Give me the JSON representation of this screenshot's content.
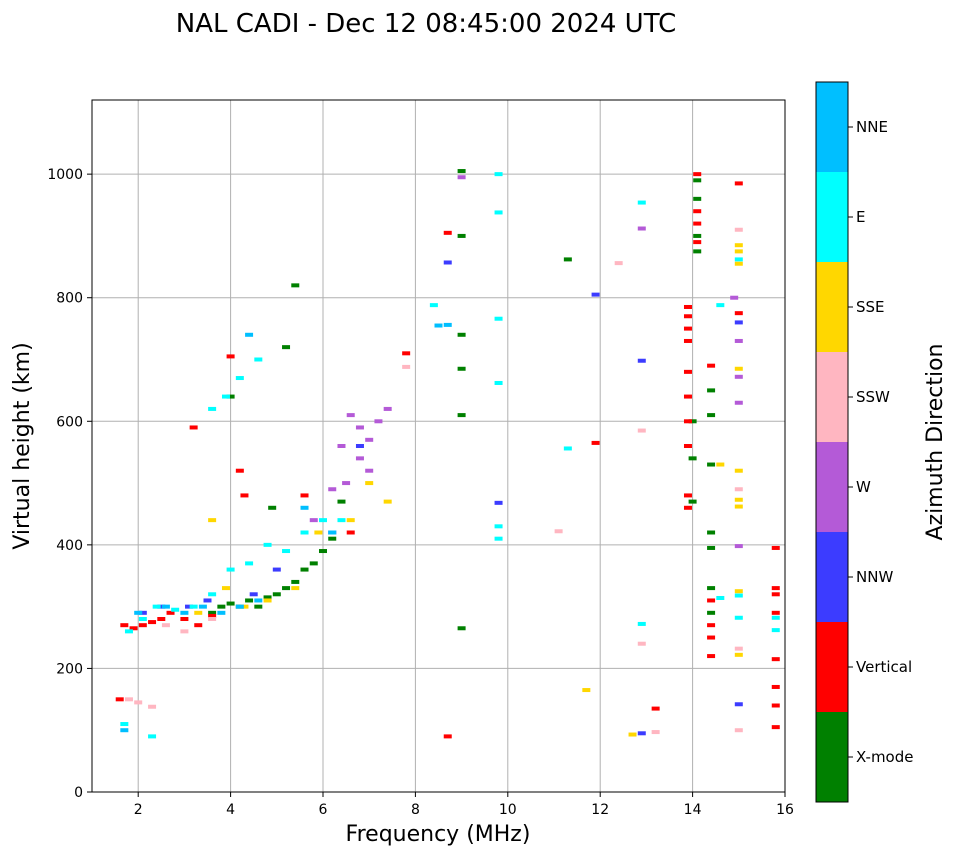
{
  "chart_data": {
    "type": "scatter",
    "title": "NAL CADI - Dec 12 08:45:00 2024 UTC",
    "xlabel": "Frequency (MHz)",
    "ylabel": "Virtual height (km)",
    "xlim": [
      1,
      16
    ],
    "ylim": [
      0,
      1120
    ],
    "xticks": [
      2,
      4,
      6,
      8,
      10,
      12,
      14,
      16
    ],
    "yticks": [
      0,
      200,
      400,
      600,
      800,
      1000
    ],
    "grid": true,
    "colorbar": {
      "label": "Azimuth Direction",
      "categories": [
        {
          "name": "X-mode",
          "color": "#008000"
        },
        {
          "name": "Vertical",
          "color": "#ff0000"
        },
        {
          "name": "NNW",
          "color": "#3c3cff"
        },
        {
          "name": "W",
          "color": "#b45ad7"
        },
        {
          "name": "SSW",
          "color": "#ffb6c1"
        },
        {
          "name": "SSE",
          "color": "#ffd700"
        },
        {
          "name": "E",
          "color": "#00ffff"
        },
        {
          "name": "NNE",
          "color": "#00bfff"
        }
      ]
    },
    "series": [
      {
        "name": "X-mode",
        "points": [
          [
            3.6,
            290
          ],
          [
            3.8,
            300
          ],
          [
            4.0,
            305
          ],
          [
            4.2,
            300
          ],
          [
            4.4,
            310
          ],
          [
            4.6,
            300
          ],
          [
            4.8,
            315
          ],
          [
            5.0,
            320
          ],
          [
            5.2,
            330
          ],
          [
            5.4,
            340
          ],
          [
            5.6,
            360
          ],
          [
            5.8,
            370
          ],
          [
            6.0,
            390
          ],
          [
            6.2,
            410
          ],
          [
            4.9,
            460
          ],
          [
            5.2,
            720
          ],
          [
            5.4,
            820
          ],
          [
            9.0,
            1005
          ],
          [
            9.0,
            900
          ],
          [
            9.0,
            740
          ],
          [
            9.0,
            685
          ],
          [
            9.0,
            610
          ],
          [
            9.0,
            265
          ],
          [
            11.3,
            862
          ],
          [
            14.1,
            990
          ],
          [
            14.1,
            960
          ],
          [
            14.1,
            900
          ],
          [
            14.1,
            875
          ],
          [
            14.0,
            600
          ],
          [
            14.0,
            540
          ],
          [
            14.0,
            470
          ],
          [
            14.4,
            650
          ],
          [
            14.4,
            610
          ],
          [
            14.4,
            530
          ],
          [
            14.4,
            420
          ],
          [
            14.4,
            395
          ],
          [
            14.4,
            330
          ],
          [
            14.4,
            290
          ],
          [
            4.0,
            640
          ],
          [
            6.4,
            470
          ]
        ]
      },
      {
        "name": "Vertical",
        "points": [
          [
            1.7,
            270
          ],
          [
            1.9,
            265
          ],
          [
            2.1,
            270
          ],
          [
            2.3,
            275
          ],
          [
            2.5,
            280
          ],
          [
            2.7,
            290
          ],
          [
            3.0,
            280
          ],
          [
            3.3,
            270
          ],
          [
            3.6,
            285
          ],
          [
            1.6,
            150
          ],
          [
            4.0,
            705
          ],
          [
            4.2,
            520
          ],
          [
            4.3,
            480
          ],
          [
            3.2,
            590
          ],
          [
            5.6,
            480
          ],
          [
            6.6,
            420
          ],
          [
            7.8,
            710
          ],
          [
            8.7,
            905
          ],
          [
            8.7,
            90
          ],
          [
            11.9,
            565
          ],
          [
            13.2,
            135
          ],
          [
            14.1,
            1000
          ],
          [
            14.1,
            940
          ],
          [
            14.1,
            920
          ],
          [
            14.1,
            890
          ],
          [
            13.9,
            785
          ],
          [
            13.9,
            770
          ],
          [
            13.9,
            750
          ],
          [
            13.9,
            730
          ],
          [
            13.9,
            680
          ],
          [
            13.9,
            640
          ],
          [
            13.9,
            600
          ],
          [
            13.9,
            560
          ],
          [
            13.9,
            480
          ],
          [
            13.9,
            460
          ],
          [
            14.4,
            690
          ],
          [
            14.4,
            310
          ],
          [
            14.4,
            270
          ],
          [
            14.4,
            250
          ],
          [
            14.4,
            220
          ],
          [
            15.0,
            985
          ],
          [
            15.0,
            775
          ],
          [
            15.8,
            395
          ],
          [
            15.8,
            330
          ],
          [
            15.8,
            320
          ],
          [
            15.8,
            290
          ],
          [
            15.8,
            215
          ],
          [
            15.8,
            170
          ],
          [
            15.8,
            140
          ],
          [
            15.8,
            105
          ]
        ]
      },
      {
        "name": "NNW",
        "points": [
          [
            2.1,
            290
          ],
          [
            2.5,
            300
          ],
          [
            3.1,
            300
          ],
          [
            3.5,
            310
          ],
          [
            4.5,
            320
          ],
          [
            5.0,
            360
          ],
          [
            6.2,
            420
          ],
          [
            8.7,
            857
          ],
          [
            9.8,
            468
          ],
          [
            11.9,
            805
          ],
          [
            12.9,
            698
          ],
          [
            12.9,
            95
          ],
          [
            15.0,
            760
          ],
          [
            15.0,
            142
          ],
          [
            6.8,
            560
          ]
        ]
      },
      {
        "name": "W",
        "points": [
          [
            6.6,
            610
          ],
          [
            6.8,
            590
          ],
          [
            7.0,
            570
          ],
          [
            7.2,
            600
          ],
          [
            7.4,
            620
          ],
          [
            6.4,
            560
          ],
          [
            6.8,
            540
          ],
          [
            7.0,
            520
          ],
          [
            6.2,
            490
          ],
          [
            6.5,
            500
          ],
          [
            5.8,
            440
          ],
          [
            15.0,
            730
          ],
          [
            15.0,
            672
          ],
          [
            15.0,
            630
          ],
          [
            15.0,
            398
          ],
          [
            9.0,
            995
          ],
          [
            12.9,
            912
          ],
          [
            14.9,
            800
          ]
        ]
      },
      {
        "name": "SSW",
        "points": [
          [
            1.8,
            150
          ],
          [
            2.0,
            145
          ],
          [
            2.3,
            138
          ],
          [
            2.6,
            270
          ],
          [
            3.0,
            260
          ],
          [
            3.6,
            280
          ],
          [
            12.4,
            856
          ],
          [
            12.9,
            585
          ],
          [
            12.9,
            240
          ],
          [
            13.2,
            97
          ],
          [
            15.0,
            910
          ],
          [
            15.0,
            490
          ],
          [
            15.0,
            232
          ],
          [
            15.0,
            100
          ],
          [
            11.1,
            422
          ],
          [
            7.8,
            688
          ]
        ]
      },
      {
        "name": "SSE",
        "points": [
          [
            3.3,
            290
          ],
          [
            3.6,
            440
          ],
          [
            3.9,
            330
          ],
          [
            4.3,
            300
          ],
          [
            4.8,
            310
          ],
          [
            5.4,
            330
          ],
          [
            5.9,
            420
          ],
          [
            6.6,
            440
          ],
          [
            7.0,
            500
          ],
          [
            7.4,
            470
          ],
          [
            11.7,
            165
          ],
          [
            12.7,
            93
          ],
          [
            15.0,
            885
          ],
          [
            15.0,
            875
          ],
          [
            15.0,
            855
          ],
          [
            15.0,
            685
          ],
          [
            15.0,
            520
          ],
          [
            15.0,
            473
          ],
          [
            15.0,
            462
          ],
          [
            15.0,
            325
          ],
          [
            15.0,
            222
          ],
          [
            14.6,
            530
          ]
        ]
      },
      {
        "name": "E",
        "points": [
          [
            1.8,
            260
          ],
          [
            2.1,
            280
          ],
          [
            2.4,
            300
          ],
          [
            2.8,
            295
          ],
          [
            3.2,
            300
          ],
          [
            3.6,
            320
          ],
          [
            4.0,
            360
          ],
          [
            4.4,
            370
          ],
          [
            4.8,
            400
          ],
          [
            5.2,
            390
          ],
          [
            5.6,
            420
          ],
          [
            6.0,
            440
          ],
          [
            6.4,
            440
          ],
          [
            3.6,
            620
          ],
          [
            3.9,
            640
          ],
          [
            4.2,
            670
          ],
          [
            4.6,
            700
          ],
          [
            1.7,
            110
          ],
          [
            2.3,
            90
          ],
          [
            8.4,
            788
          ],
          [
            9.8,
            1000
          ],
          [
            9.8,
            938
          ],
          [
            9.8,
            766
          ],
          [
            9.8,
            662
          ],
          [
            9.8,
            430
          ],
          [
            9.8,
            410
          ],
          [
            11.3,
            556
          ],
          [
            12.9,
            954
          ],
          [
            12.9,
            272
          ],
          [
            14.6,
            788
          ],
          [
            14.6,
            314
          ],
          [
            15.0,
            862
          ],
          [
            15.0,
            318
          ],
          [
            15.0,
            282
          ],
          [
            15.8,
            282
          ],
          [
            15.8,
            262
          ]
        ]
      },
      {
        "name": "NNE",
        "points": [
          [
            2.0,
            290
          ],
          [
            2.6,
            300
          ],
          [
            3.0,
            290
          ],
          [
            3.4,
            300
          ],
          [
            3.8,
            290
          ],
          [
            4.2,
            300
          ],
          [
            4.6,
            310
          ],
          [
            5.6,
            460
          ],
          [
            6.2,
            420
          ],
          [
            4.4,
            740
          ],
          [
            1.7,
            100
          ],
          [
            8.7,
            756
          ],
          [
            8.5,
            755
          ]
        ]
      }
    ]
  }
}
